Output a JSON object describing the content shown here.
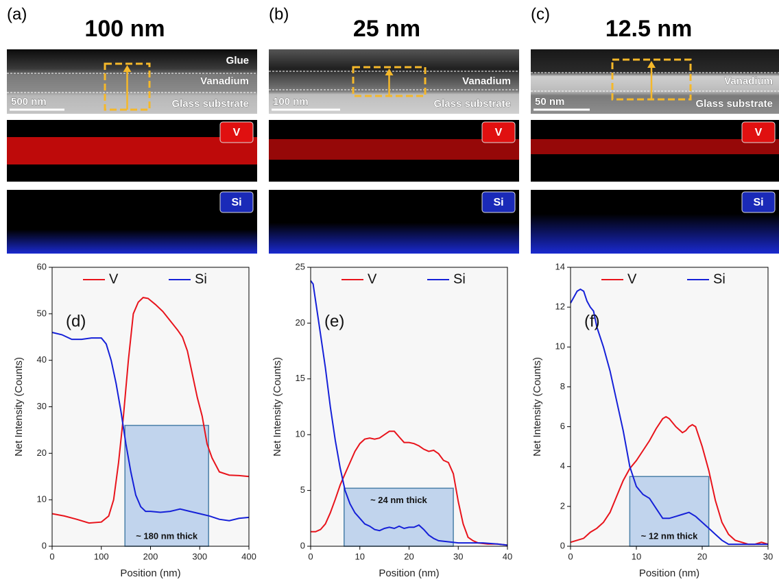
{
  "panels": [
    {
      "label": "(a)",
      "title": "100 nm",
      "layers": [
        "Glue",
        "Vanadium",
        "Glass substrate"
      ],
      "scale_bar": "500 nm",
      "maps": [
        "V",
        "Si"
      ]
    },
    {
      "label": "(b)",
      "title": "25 nm",
      "layers": [
        "Vanadium",
        "Glass substrate"
      ],
      "scale_bar": "100 nm",
      "maps": [
        "V",
        "Si"
      ]
    },
    {
      "label": "(c)",
      "title": "12.5 nm",
      "layers": [
        "Vanadium",
        "Glass substrate"
      ],
      "scale_bar": "50 nm",
      "maps": [
        "V",
        "Si"
      ]
    }
  ],
  "chart_data": [
    {
      "type": "line",
      "panel_label": "(d)",
      "x_label": "Position (nm)",
      "y_label": "Net Intensity (Counts)",
      "xlim": [
        0,
        400
      ],
      "xticks": [
        0,
        100,
        200,
        300,
        400
      ],
      "ylim": [
        0,
        60
      ],
      "yticks": [
        0,
        10,
        20,
        30,
        40,
        50,
        60
      ],
      "series": [
        {
          "name": "V",
          "color": "#e8131b",
          "x": [
            0,
            25,
            50,
            75,
            100,
            115,
            125,
            135,
            145,
            155,
            165,
            175,
            185,
            195,
            210,
            225,
            240,
            255,
            265,
            275,
            285,
            295,
            305,
            315,
            325,
            340,
            360,
            380,
            400
          ],
          "values": [
            7,
            6.5,
            5.8,
            5,
            5.2,
            6.5,
            10,
            18,
            28,
            40,
            50,
            52.5,
            53.5,
            53.3,
            52,
            50.5,
            48.5,
            46.5,
            45,
            42,
            37,
            32,
            28,
            22,
            19,
            16,
            15.3,
            15.2,
            15
          ]
        },
        {
          "name": "Si",
          "color": "#1520d8",
          "x": [
            0,
            20,
            40,
            60,
            80,
            100,
            110,
            120,
            130,
            140,
            150,
            160,
            170,
            180,
            190,
            200,
            220,
            240,
            260,
            280,
            300,
            320,
            340,
            360,
            380,
            400
          ],
          "values": [
            46,
            45.5,
            44.5,
            44.5,
            44.8,
            44.8,
            43.5,
            40,
            35,
            29,
            22,
            16,
            11,
            8.5,
            7.5,
            7.5,
            7.3,
            7.5,
            8,
            7.5,
            7,
            6.5,
            5.8,
            5.5,
            6,
            6.2
          ]
        }
      ],
      "highlight": {
        "x": [
          148,
          318
        ],
        "y": [
          0,
          26
        ]
      },
      "annotation": "~ 180 nm thick"
    },
    {
      "type": "line",
      "panel_label": "(e)",
      "x_label": "Position (nm)",
      "y_label": "Net Intensity (Counts)",
      "xlim": [
        0,
        40
      ],
      "xticks": [
        0,
        10,
        20,
        30,
        40
      ],
      "ylim": [
        0,
        25
      ],
      "yticks": [
        0,
        5,
        10,
        15,
        20,
        25
      ],
      "series": [
        {
          "name": "V",
          "color": "#e8131b",
          "x": [
            0,
            1,
            2,
            3,
            4,
            5,
            6,
            7,
            8,
            9,
            10,
            11,
            12,
            13,
            14,
            15,
            16,
            17,
            18,
            19,
            20,
            21,
            22,
            23,
            24,
            25,
            26,
            27,
            28,
            29,
            30,
            31,
            32,
            33,
            34,
            36,
            38,
            40
          ],
          "values": [
            1.3,
            1.3,
            1.5,
            2,
            3,
            4.2,
            5.5,
            6.5,
            7.5,
            8.5,
            9.2,
            9.6,
            9.7,
            9.6,
            9.7,
            10,
            10.3,
            10.3,
            9.8,
            9.3,
            9.3,
            9.2,
            9,
            8.7,
            8.5,
            8.6,
            8.3,
            7.7,
            7.5,
            6.5,
            4,
            2,
            0.8,
            0.5,
            0.3,
            0.2,
            0.2,
            0.1
          ]
        },
        {
          "name": "Si",
          "color": "#1520d8",
          "x": [
            0,
            0.5,
            1,
            2,
            3,
            4,
            5,
            6,
            7,
            8,
            9,
            10,
            11,
            12,
            13,
            14,
            15,
            16,
            17,
            18,
            19,
            20,
            21,
            22,
            23,
            24,
            25,
            26,
            28,
            30,
            32,
            35,
            38,
            40
          ],
          "values": [
            23.8,
            23.5,
            22,
            19,
            16,
            12.5,
            9.5,
            7,
            5,
            3.8,
            3,
            2.5,
            2,
            1.8,
            1.5,
            1.4,
            1.6,
            1.7,
            1.6,
            1.8,
            1.6,
            1.7,
            1.7,
            1.9,
            1.5,
            1,
            0.7,
            0.5,
            0.4,
            0.3,
            0.3,
            0.3,
            0.2,
            0.1
          ]
        }
      ],
      "highlight": {
        "x": [
          6.8,
          29
        ],
        "y": [
          0,
          5.2
        ]
      },
      "annotation": "~ 24 nm thick"
    },
    {
      "type": "line",
      "panel_label": "(f)",
      "x_label": "Position (nm)",
      "y_label": "Net Intensity (Counts)",
      "xlim": [
        0,
        30
      ],
      "xticks": [
        0,
        10,
        20,
        30
      ],
      "ylim": [
        0,
        14
      ],
      "yticks": [
        0,
        2,
        4,
        6,
        8,
        10,
        12,
        14
      ],
      "series": [
        {
          "name": "V",
          "color": "#e8131b",
          "x": [
            0,
            1,
            2,
            3,
            4,
            5,
            6,
            7,
            8,
            9,
            10,
            11,
            12,
            13,
            14,
            14.5,
            15,
            16,
            17,
            17.5,
            18,
            18.5,
            19,
            20,
            21,
            22,
            23,
            24,
            25,
            26,
            27,
            28,
            29,
            30
          ],
          "values": [
            0.2,
            0.3,
            0.4,
            0.7,
            0.9,
            1.2,
            1.7,
            2.5,
            3.3,
            3.9,
            4.3,
            4.8,
            5.3,
            5.9,
            6.4,
            6.5,
            6.4,
            6,
            5.7,
            5.8,
            6,
            6.1,
            6,
            5,
            3.8,
            2.3,
            1.2,
            0.6,
            0.3,
            0.2,
            0.1,
            0.1,
            0.2,
            0.1
          ]
        },
        {
          "name": "Si",
          "color": "#1520d8",
          "x": [
            0,
            0.5,
            1,
            1.5,
            2,
            2.5,
            3,
            3.5,
            4,
            5,
            6,
            7,
            8,
            9,
            10,
            11,
            12,
            13,
            14,
            15,
            16,
            17,
            18,
            19,
            20,
            21,
            22,
            23,
            24,
            25,
            26,
            28,
            30
          ],
          "values": [
            12.2,
            12.5,
            12.8,
            12.9,
            12.8,
            12.3,
            12,
            11.8,
            11,
            10,
            8.8,
            7.3,
            5.8,
            4,
            3,
            2.6,
            2.4,
            1.9,
            1.4,
            1.4,
            1.5,
            1.6,
            1.7,
            1.5,
            1.2,
            0.9,
            0.6,
            0.3,
            0.1,
            0.1,
            0.1,
            0.1,
            0.1
          ]
        }
      ],
      "highlight": {
        "x": [
          9,
          21
        ],
        "y": [
          0,
          3.5
        ]
      },
      "annotation": "~ 12 nm thick"
    }
  ]
}
